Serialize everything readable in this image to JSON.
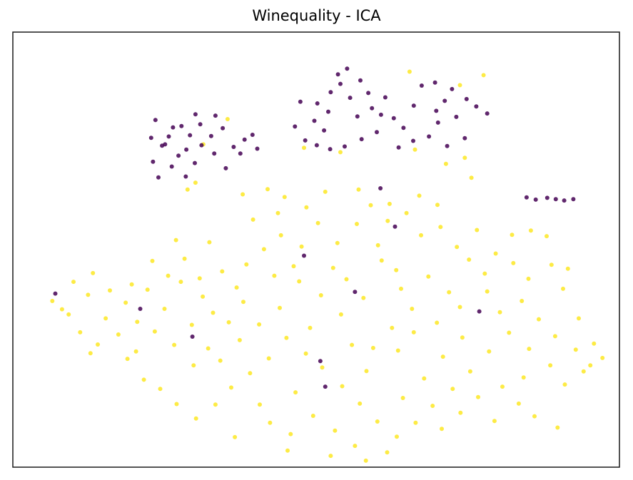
{
  "chart_data": {
    "type": "scatter",
    "title": "Winequality - ICA",
    "xlabel": "",
    "ylabel": "",
    "xlim": [
      0,
      100
    ],
    "ylim": [
      0,
      100
    ],
    "axis_ticks": false,
    "grid": false,
    "legend": "none",
    "colors": {
      "class_0": "#440154",
      "class_1": "#fde725",
      "frame": "#000000"
    },
    "series": [
      {
        "values": [
          [
            23.5,
            79.8
          ],
          [
            25.1,
            74.2
          ],
          [
            27.3,
            71.6
          ],
          [
            24.6,
            73.9
          ],
          [
            29.2,
            76.3
          ],
          [
            26.4,
            78.1
          ],
          [
            22.8,
            75.7
          ],
          [
            28.6,
            73.0
          ],
          [
            30.9,
            78.8
          ],
          [
            32.7,
            76.1
          ],
          [
            34.6,
            77.9
          ],
          [
            36.4,
            73.6
          ],
          [
            38.2,
            75.3
          ],
          [
            39.5,
            76.4
          ],
          [
            33.2,
            72.1
          ],
          [
            31.1,
            74.0
          ],
          [
            27.8,
            78.4
          ],
          [
            25.7,
            76.0
          ],
          [
            23.1,
            70.2
          ],
          [
            26.2,
            69.1
          ],
          [
            28.5,
            66.8
          ],
          [
            24.0,
            66.6
          ],
          [
            30.0,
            69.9
          ],
          [
            35.1,
            68.7
          ],
          [
            37.5,
            72.1
          ],
          [
            40.3,
            73.2
          ],
          [
            33.4,
            80.8
          ],
          [
            30.1,
            81.1
          ],
          [
            46.5,
            78.3
          ],
          [
            48.2,
            75.1
          ],
          [
            49.7,
            79.6
          ],
          [
            51.3,
            77.4
          ],
          [
            50.2,
            83.6
          ],
          [
            52.4,
            86.2
          ],
          [
            54.0,
            88.1
          ],
          [
            55.6,
            84.9
          ],
          [
            57.3,
            88.9
          ],
          [
            58.6,
            86.0
          ],
          [
            55.1,
            91.6
          ],
          [
            53.6,
            90.3
          ],
          [
            52.0,
            81.7
          ],
          [
            56.8,
            80.6
          ],
          [
            59.2,
            82.5
          ],
          [
            61.4,
            85.0
          ],
          [
            60.0,
            77.0
          ],
          [
            57.5,
            75.4
          ],
          [
            54.7,
            73.7
          ],
          [
            52.3,
            73.1
          ],
          [
            50.1,
            74.0
          ],
          [
            62.8,
            80.2
          ],
          [
            64.4,
            78.0
          ],
          [
            66.1,
            83.1
          ],
          [
            67.4,
            87.7
          ],
          [
            69.6,
            88.4
          ],
          [
            71.2,
            84.2
          ],
          [
            73.1,
            80.5
          ],
          [
            74.8,
            84.6
          ],
          [
            76.4,
            82.9
          ],
          [
            78.2,
            81.3
          ],
          [
            72.4,
            86.9
          ],
          [
            70.1,
            79.2
          ],
          [
            68.6,
            76.0
          ],
          [
            71.6,
            73.8
          ],
          [
            74.5,
            75.6
          ],
          [
            66.0,
            75.0
          ],
          [
            63.6,
            73.5
          ],
          [
            69.8,
            81.9
          ],
          [
            60.7,
            81.0
          ],
          [
            47.4,
            84.0
          ],
          [
            86.2,
            61.5
          ],
          [
            88.1,
            61.9
          ],
          [
            89.5,
            61.6
          ],
          [
            90.9,
            61.3
          ],
          [
            92.4,
            61.6
          ],
          [
            84.7,
            62.0
          ],
          [
            48.0,
            48.6
          ],
          [
            60.6,
            64.1
          ],
          [
            63.0,
            55.3
          ],
          [
            56.4,
            40.3
          ],
          [
            51.5,
            18.5
          ],
          [
            50.7,
            24.4
          ],
          [
            29.6,
            30.0
          ],
          [
            21.0,
            36.4
          ],
          [
            7.0,
            39.9
          ],
          [
            76.9,
            35.8
          ]
        ]
      },
      {
        "values": [
          [
            6.5,
            38.2
          ],
          [
            9.2,
            35.1
          ],
          [
            12.4,
            39.6
          ],
          [
            15.3,
            34.2
          ],
          [
            18.6,
            37.8
          ],
          [
            11.1,
            31.0
          ],
          [
            14.0,
            28.2
          ],
          [
            17.4,
            30.5
          ],
          [
            20.5,
            33.4
          ],
          [
            23.4,
            31.2
          ],
          [
            26.6,
            28.1
          ],
          [
            29.5,
            32.7
          ],
          [
            25.0,
            36.4
          ],
          [
            22.2,
            40.8
          ],
          [
            27.7,
            42.6
          ],
          [
            31.3,
            39.2
          ],
          [
            34.5,
            45.0
          ],
          [
            36.9,
            41.3
          ],
          [
            33.0,
            35.5
          ],
          [
            38.5,
            46.6
          ],
          [
            41.4,
            50.1
          ],
          [
            44.2,
            53.3
          ],
          [
            47.6,
            50.7
          ],
          [
            50.3,
            56.1
          ],
          [
            53.5,
            51.5
          ],
          [
            56.7,
            55.9
          ],
          [
            59.0,
            60.2
          ],
          [
            61.8,
            56.6
          ],
          [
            64.9,
            58.4
          ],
          [
            67.3,
            53.3
          ],
          [
            70.5,
            55.2
          ],
          [
            73.2,
            50.6
          ],
          [
            76.5,
            54.5
          ],
          [
            79.6,
            49.1
          ],
          [
            82.3,
            53.4
          ],
          [
            85.4,
            54.4
          ],
          [
            88.0,
            53.1
          ],
          [
            90.7,
            41.0
          ],
          [
            93.3,
            34.2
          ],
          [
            95.8,
            28.4
          ],
          [
            97.2,
            25.1
          ],
          [
            94.1,
            22.0
          ],
          [
            91.0,
            19.0
          ],
          [
            88.6,
            23.4
          ],
          [
            85.1,
            27.2
          ],
          [
            81.8,
            30.9
          ],
          [
            78.5,
            26.6
          ],
          [
            75.4,
            22.0
          ],
          [
            72.5,
            18.0
          ],
          [
            69.2,
            14.1
          ],
          [
            66.4,
            10.2
          ],
          [
            63.3,
            7.0
          ],
          [
            60.1,
            10.5
          ],
          [
            57.2,
            14.6
          ],
          [
            54.3,
            18.6
          ],
          [
            51.0,
            22.9
          ],
          [
            48.3,
            26.1
          ],
          [
            45.1,
            29.7
          ],
          [
            42.2,
            25.0
          ],
          [
            39.1,
            21.6
          ],
          [
            36.0,
            18.3
          ],
          [
            33.4,
            14.4
          ],
          [
            30.2,
            11.2
          ],
          [
            27.0,
            14.5
          ],
          [
            24.3,
            18.0
          ],
          [
            21.6,
            20.1
          ],
          [
            18.9,
            24.9
          ],
          [
            42.4,
            10.2
          ],
          [
            45.8,
            7.6
          ],
          [
            49.5,
            11.8
          ],
          [
            53.1,
            8.4
          ],
          [
            56.4,
            4.9
          ],
          [
            61.7,
            3.4
          ],
          [
            64.3,
            15.9
          ],
          [
            67.8,
            20.4
          ],
          [
            70.9,
            25.4
          ],
          [
            74.1,
            29.8
          ],
          [
            80.3,
            35.6
          ],
          [
            83.9,
            38.2
          ],
          [
            86.7,
            34.0
          ],
          [
            89.4,
            30.1
          ],
          [
            59.4,
            27.4
          ],
          [
            62.5,
            32.0
          ],
          [
            65.8,
            36.4
          ],
          [
            57.8,
            38.9
          ],
          [
            54.1,
            35.1
          ],
          [
            50.8,
            39.5
          ],
          [
            47.2,
            42.7
          ],
          [
            44.0,
            36.6
          ],
          [
            40.6,
            32.8
          ],
          [
            37.4,
            29.2
          ],
          [
            34.2,
            24.5
          ],
          [
            46.3,
            46.2
          ],
          [
            52.8,
            45.8
          ],
          [
            60.8,
            47.5
          ],
          [
            68.5,
            43.8
          ],
          [
            71.9,
            40.2
          ],
          [
            77.8,
            44.5
          ],
          [
            75.2,
            47.7
          ],
          [
            39.6,
            56.9
          ],
          [
            43.7,
            58.4
          ],
          [
            48.4,
            59.7
          ],
          [
            62.1,
            60.5
          ],
          [
            67.0,
            62.4
          ],
          [
            70.0,
            60.3
          ],
          [
            32.4,
            51.7
          ],
          [
            28.3,
            47.9
          ],
          [
            25.6,
            44.0
          ],
          [
            19.6,
            42.0
          ],
          [
            16.0,
            40.6
          ],
          [
            13.2,
            44.6
          ],
          [
            10.0,
            42.6
          ],
          [
            8.1,
            36.3
          ],
          [
            12.8,
            26.2
          ],
          [
            20.3,
            26.6
          ],
          [
            38.0,
            38.0
          ],
          [
            35.6,
            33.3
          ],
          [
            32.2,
            27.3
          ],
          [
            29.8,
            23.4
          ],
          [
            46.6,
            17.2
          ],
          [
            40.7,
            14.4
          ],
          [
            36.6,
            6.9
          ],
          [
            45.3,
            3.8
          ],
          [
            52.4,
            2.6
          ],
          [
            58.2,
            1.5
          ],
          [
            70.7,
            8.8
          ],
          [
            73.8,
            12.5
          ],
          [
            76.7,
            16.1
          ],
          [
            80.7,
            18.5
          ],
          [
            83.4,
            14.6
          ],
          [
            86.0,
            11.7
          ],
          [
            89.8,
            9.1
          ],
          [
            79.4,
            10.6
          ],
          [
            84.2,
            20.6
          ],
          [
            92.8,
            27.0
          ],
          [
            95.2,
            23.4
          ],
          [
            58.3,
            22.1
          ],
          [
            55.9,
            28.1
          ],
          [
            63.5,
            26.8
          ],
          [
            66.1,
            31.0
          ],
          [
            69.9,
            33.2
          ],
          [
            73.7,
            36.8
          ],
          [
            78.2,
            40.4
          ],
          [
            55.0,
            43.2
          ],
          [
            64.0,
            41.0
          ],
          [
            49.0,
            32.0
          ],
          [
            43.1,
            44.0
          ],
          [
            30.8,
            43.4
          ],
          [
            23.0,
            47.4
          ],
          [
            26.9,
            52.2
          ],
          [
            37.9,
            62.7
          ],
          [
            42.0,
            63.9
          ],
          [
            51.5,
            63.3
          ],
          [
            57.0,
            63.8
          ],
          [
            44.8,
            62.1
          ],
          [
            63.2,
            45.3
          ],
          [
            60.2,
            51.0
          ],
          [
            82.5,
            46.9
          ],
          [
            88.8,
            46.5
          ],
          [
            85.0,
            43.3
          ],
          [
            91.5,
            45.6
          ],
          [
            31.4,
            74.2
          ],
          [
            48.0,
            73.4
          ],
          [
            74.5,
            71.1
          ],
          [
            77.6,
            90.1
          ],
          [
            65.4,
            90.9
          ],
          [
            73.7,
            87.8
          ],
          [
            35.4,
            80.0
          ],
          [
            30.1,
            65.4
          ],
          [
            28.8,
            63.8
          ],
          [
            54.0,
            72.4
          ],
          [
            66.3,
            73.0
          ],
          [
            75.6,
            66.5
          ],
          [
            71.4,
            69.7
          ]
        ]
      }
    ]
  }
}
